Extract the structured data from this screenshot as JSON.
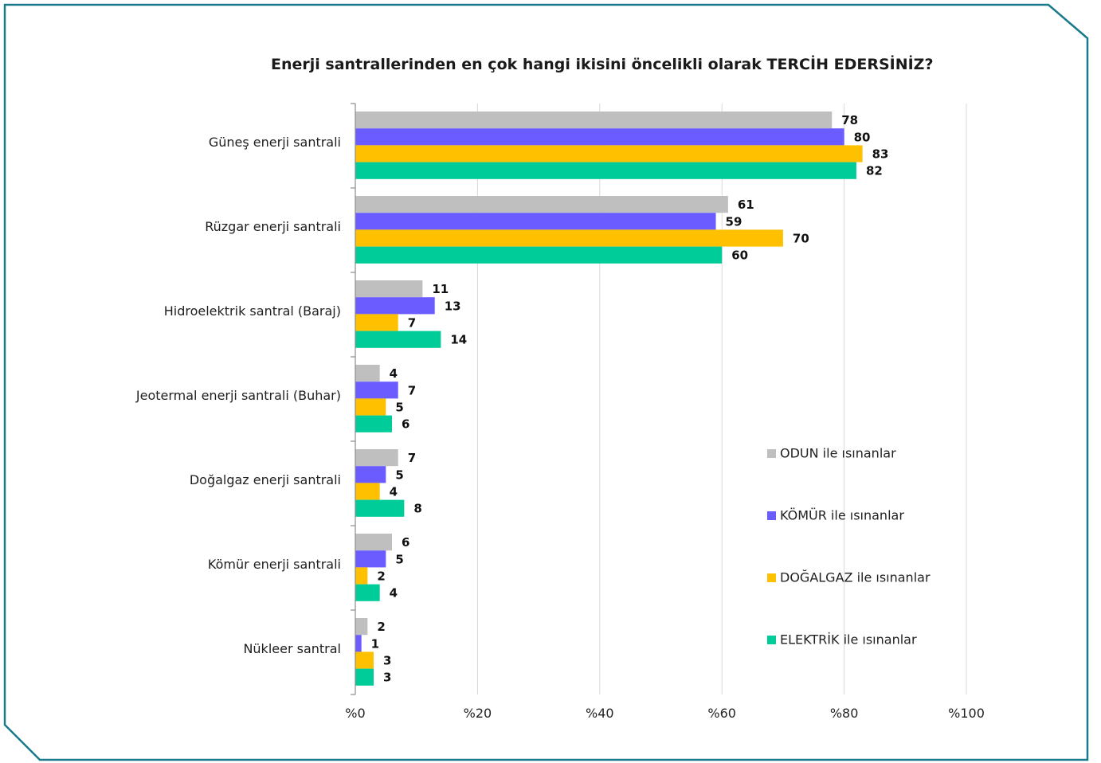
{
  "chart_data": {
    "type": "bar",
    "orientation": "horizontal",
    "title_parts": [
      "Enerji santrallerinden en çok hangi ikisini öncelikli olarak ",
      "TERCİH EDERSİNİZ?"
    ],
    "categories": [
      "Güneş enerji santrali",
      "Rüzgar enerji santrali",
      "Hidroelektrik santral (Baraj)",
      "Jeotermal enerji santrali (Buhar)",
      "Doğalgaz enerji santrali",
      "Kömür enerji santrali",
      "Nükleer santral"
    ],
    "series": [
      {
        "name": "ODUN ile ısınanlar",
        "color": "#bfbfbf",
        "values": [
          78,
          61,
          11,
          4,
          7,
          6,
          2
        ]
      },
      {
        "name": "KÖMÜR ile ısınanlar",
        "color": "#6b5cff",
        "values": [
          80,
          59,
          13,
          7,
          5,
          5,
          1
        ]
      },
      {
        "name": "DOĞALGAZ ile ısınanlar",
        "color": "#ffc000",
        "values": [
          83,
          70,
          7,
          5,
          4,
          2,
          3
        ]
      },
      {
        "name": "ELEKTRİK ile ısınanlar",
        "color": "#00cc99",
        "values": [
          82,
          60,
          14,
          6,
          8,
          4,
          3
        ]
      }
    ],
    "xlim": [
      0,
      100
    ],
    "xticks": [
      0,
      20,
      40,
      60,
      80,
      100
    ],
    "tick_prefix": "%",
    "grid": true,
    "legend_position": "right"
  },
  "colors": {
    "frame": "#1a7a8c",
    "grid": "#d9d9d9",
    "axis": "#8c8c8c"
  }
}
